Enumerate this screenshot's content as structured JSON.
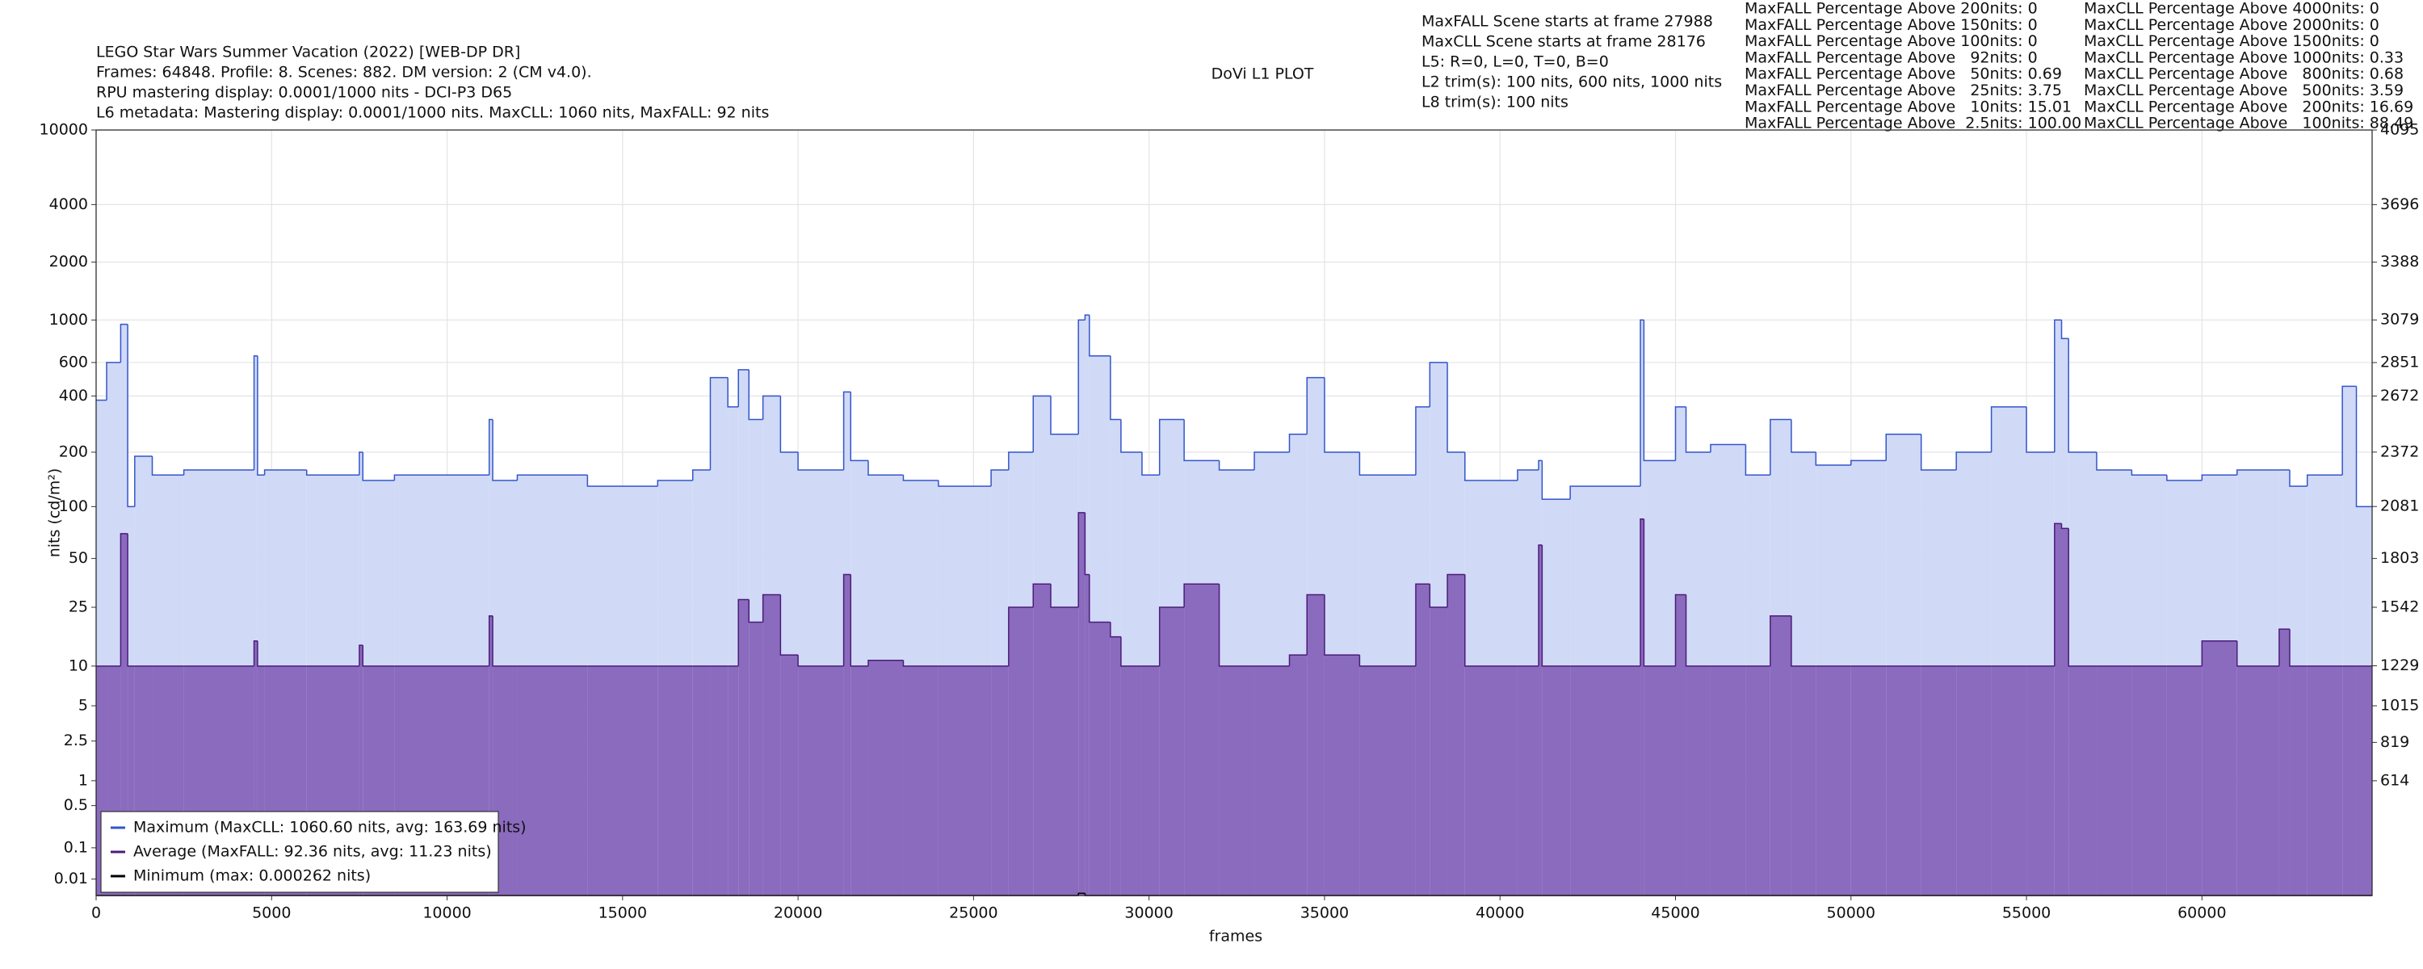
{
  "chart_data": {
    "type": "line",
    "title": "DoVi L1 PLOT",
    "info_left": [
      "LEGO Star Wars Summer Vacation (2022) [WEB-DP DR]",
      "Frames: 64848. Profile: 8. Scenes: 882. DM version: 2 (CM v4.0).",
      "RPU mastering display: 0.0001/1000 nits - DCI-P3 D65",
      "L6 metadata: Mastering display: 0.0001/1000 nits. MaxCLL: 1060 nits, MaxFALL: 92 nits"
    ],
    "info_mid": [
      "MaxFALL Scene starts at frame 27988",
      "MaxCLL Scene starts at frame 28176",
      "L5: R=0, L=0, T=0, B=0",
      "L2 trim(s): 100 nits, 600 nits, 1000 nits",
      "L8 trim(s): 100 nits"
    ],
    "stats_maxfall": [
      "MaxFALL Percentage Above 200nits: 0",
      "MaxFALL Percentage Above 150nits: 0",
      "MaxFALL Percentage Above 100nits: 0",
      "MaxFALL Percentage Above   92nits: 0",
      "MaxFALL Percentage Above   50nits: 0.69",
      "MaxFALL Percentage Above   25nits: 3.75",
      "MaxFALL Percentage Above   10nits: 15.01",
      "MaxFALL Percentage Above  2.5nits: 100.00"
    ],
    "stats_maxcll": [
      "MaxCLL Percentage Above 4000nits: 0",
      "MaxCLL Percentage Above 2000nits: 0",
      "MaxCLL Percentage Above 1500nits: 0",
      "MaxCLL Percentage Above 1000nits: 0.33",
      "MaxCLL Percentage Above   800nits: 0.68",
      "MaxCLL Percentage Above   500nits: 3.59",
      "MaxCLL Percentage Above   200nits: 16.69",
      "MaxCLL Percentage Above   100nits: 88.49"
    ],
    "x_label": "frames",
    "y_label": "nits (cd/m²)",
    "scale": "pq",
    "grid": true,
    "legend": "lower left",
    "xlim": [
      0,
      64848
    ],
    "xticks": [
      0,
      5000,
      10000,
      15000,
      20000,
      25000,
      30000,
      35000,
      40000,
      45000,
      50000,
      55000,
      60000
    ],
    "ylim": [
      0,
      10000
    ],
    "yticks": [
      0.01,
      0.1,
      0.5,
      1,
      2.5,
      5,
      10,
      25,
      50,
      100,
      200,
      400,
      600,
      1000,
      2000,
      4000,
      10000
    ],
    "y2lim": [
      0,
      4095
    ],
    "y2ticks": [
      614,
      819,
      1015,
      1229,
      1542,
      1803,
      2081,
      2372,
      2672,
      2851,
      3079,
      3388,
      3696,
      4095
    ],
    "x": [
      0,
      300,
      700,
      900,
      1100,
      1600,
      2500,
      4500,
      4600,
      4800,
      6000,
      7500,
      7600,
      8500,
      11200,
      11300,
      12000,
      14000,
      16000,
      17000,
      17500,
      18000,
      18300,
      18600,
      19000,
      19500,
      20000,
      21300,
      21500,
      22000,
      23000,
      24000,
      25500,
      26000,
      26700,
      27200,
      27988,
      28176,
      28300,
      28900,
      29200,
      29800,
      30300,
      31000,
      32000,
      33000,
      34000,
      34500,
      35000,
      36000,
      37600,
      38000,
      38500,
      39000,
      40500,
      41100,
      41200,
      42000,
      44000,
      44100,
      45000,
      45300,
      46000,
      47000,
      47700,
      48300,
      49000,
      50000,
      51000,
      52000,
      53000,
      54000,
      55000,
      55800,
      56000,
      56200,
      57000,
      58000,
      59000,
      60000,
      61000,
      62200,
      62500,
      63000,
      64000,
      64400,
      64848
    ],
    "series": [
      {
        "name": "Maximum (MaxCLL: 1060.60 nits, avg: 163.69 nits)",
        "color": "#3355cc",
        "fill": "#d0d9f6",
        "values": [
          380,
          600,
          950,
          100,
          190,
          150,
          160,
          650,
          150,
          160,
          150,
          200,
          140,
          150,
          300,
          140,
          150,
          130,
          140,
          160,
          500,
          350,
          550,
          300,
          400,
          200,
          160,
          420,
          180,
          150,
          140,
          130,
          160,
          200,
          400,
          250,
          1000,
          1060.6,
          650,
          300,
          200,
          150,
          300,
          180,
          160,
          200,
          250,
          500,
          200,
          150,
          350,
          600,
          200,
          140,
          160,
          180,
          110,
          130,
          1000,
          180,
          350,
          200,
          220,
          150,
          300,
          200,
          170,
          180,
          250,
          160,
          200,
          350,
          200,
          1000,
          800,
          200,
          160,
          150,
          140,
          150,
          160,
          160,
          130,
          150,
          450,
          100,
          100
        ]
      },
      {
        "name": "Average (MaxFALL: 92.36 nits, avg: 11.23 nits)",
        "color": "#4b1c7a",
        "fill": "#8b6bbe",
        "values": [
          10,
          10,
          70,
          10,
          10,
          10,
          10,
          15,
          10,
          10,
          10,
          14,
          10,
          10,
          22,
          10,
          10,
          10,
          10,
          10,
          10,
          10,
          28,
          20,
          30,
          12,
          10,
          40,
          10,
          11,
          10,
          10,
          10,
          25,
          35,
          25,
          92.36,
          40,
          20,
          16,
          10,
          10,
          25,
          35,
          10,
          10,
          12,
          30,
          12,
          10,
          35,
          25,
          40,
          10,
          10,
          60,
          10,
          10,
          85,
          10,
          30,
          10,
          10,
          10,
          22,
          10,
          10,
          10,
          10,
          10,
          10,
          10,
          10,
          80,
          75,
          10,
          10,
          10,
          10,
          15,
          10,
          18,
          10,
          10,
          10,
          10,
          10
        ]
      },
      {
        "name": "Minimum (max: 0.000262 nits)",
        "color": "#000000",
        "values": [
          0,
          0,
          0,
          0,
          0,
          0,
          0,
          0,
          0,
          0,
          0,
          0,
          0,
          0,
          0,
          0,
          0,
          0,
          0,
          0,
          0,
          0,
          0,
          0,
          0,
          0,
          0,
          0,
          0,
          0,
          0,
          0,
          0,
          0,
          0,
          0,
          0.000262,
          0,
          0,
          0,
          0,
          0,
          0,
          0,
          0,
          0,
          0,
          0,
          0,
          0,
          0,
          0,
          0,
          0,
          0,
          0,
          0,
          0,
          0,
          0,
          0,
          0,
          0,
          0,
          0,
          0,
          0,
          0,
          0,
          0,
          0,
          0,
          0,
          0,
          0,
          0,
          0,
          0,
          0,
          0,
          0,
          0,
          0,
          0,
          0,
          0,
          0
        ]
      }
    ]
  }
}
